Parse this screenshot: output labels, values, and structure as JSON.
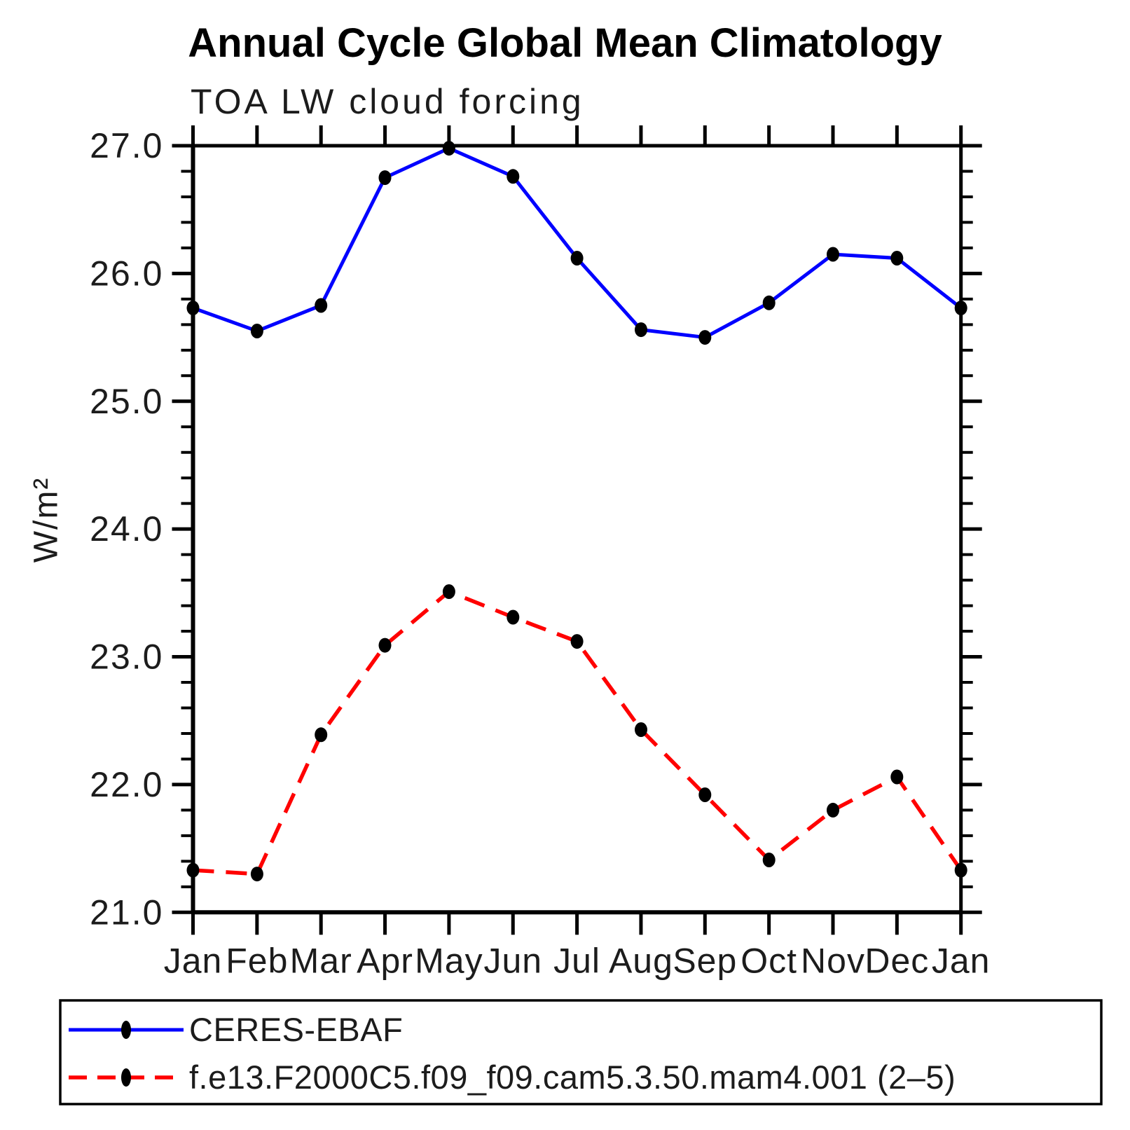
{
  "header": {
    "title": "Annual Cycle Global Mean Climatology"
  },
  "chart_data": {
    "type": "line",
    "title": "Annual Cycle Global Mean Climatology",
    "subtitle": "TOA LW cloud forcing",
    "ylabel": "W/m²",
    "xlabel": "",
    "categories": [
      "Jan",
      "Feb",
      "Mar",
      "Apr",
      "May",
      "Jun",
      "Jul",
      "Aug",
      "Sep",
      "Oct",
      "Nov",
      "Dec",
      "Jan"
    ],
    "ylim": [
      21.0,
      27.0
    ],
    "ytick_interval": 1.0,
    "yminor_interval": 0.2,
    "ytick_labels": [
      "21.0",
      "22.0",
      "23.0",
      "24.0",
      "25.0",
      "26.0",
      "27.0"
    ],
    "grid": false,
    "legend_position": "bottom-box",
    "marker": "filled-circle",
    "marker_color": "#000000",
    "axis_color": "#000000",
    "series": [
      {
        "name": "CERES-EBAF",
        "color": "#0000ff",
        "style": "solid",
        "values": [
          25.73,
          25.55,
          25.75,
          26.75,
          26.98,
          26.76,
          26.12,
          25.56,
          25.5,
          25.77,
          26.15,
          26.12,
          25.73
        ]
      },
      {
        "name": "f.e13.F2000C5.f09_f09.cam5.3.50.mam4.001 (2–5)",
        "color": "#ff0000",
        "style": "dashed",
        "values": [
          21.33,
          21.3,
          22.39,
          23.09,
          23.51,
          23.31,
          23.12,
          22.43,
          21.92,
          21.41,
          21.8,
          22.06,
          21.33
        ]
      }
    ]
  }
}
